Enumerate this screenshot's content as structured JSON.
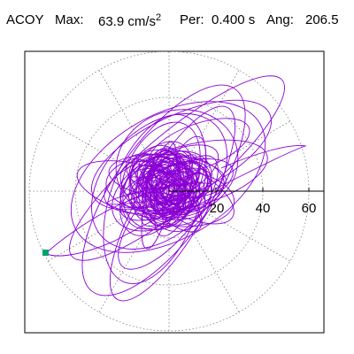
{
  "header": {
    "component": "ACOY",
    "max_label": "Max:",
    "max_value": "63.9 cm/s",
    "max_exponent": "2",
    "period_label": "Per:",
    "period_value": "0.400 s",
    "angle_label": "Ang:",
    "angle_value": "206.5"
  },
  "plot": {
    "tick_labels": [
      "20",
      "40",
      "60"
    ],
    "trace_color": "#8a00d4",
    "marker_color": "#00a070",
    "grid_color": "#808080"
  }
}
